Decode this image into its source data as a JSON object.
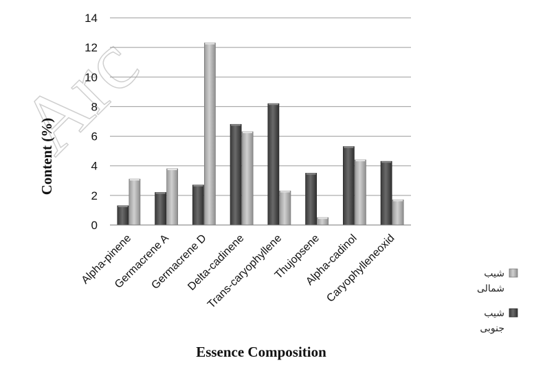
{
  "chart_data": {
    "type": "bar",
    "title": "",
    "xlabel": "Essence Composition",
    "ylabel": "Content (%)",
    "ylim": [
      0,
      14
    ],
    "yticks": [
      0,
      2,
      4,
      6,
      8,
      10,
      12,
      14
    ],
    "grid": true,
    "legend_position": "right",
    "watermark": "Arc",
    "categories": [
      "Alpha-pinene",
      "Germacrene A",
      "Germacrene D",
      "Delta-cadinene",
      "Trans-caryophyllene",
      "Thujopsene",
      "Alpha-cadinol",
      "Caryophylleneoxid"
    ],
    "series": [
      {
        "name": "شیب جنوبی",
        "color": "#505050",
        "values": [
          1.3,
          2.2,
          2.7,
          6.8,
          8.2,
          3.5,
          5.3,
          4.3
        ]
      },
      {
        "name": "شیب شمالی",
        "color": "#b4b4b4",
        "values": [
          3.1,
          3.8,
          12.3,
          6.3,
          2.3,
          0.5,
          4.4,
          1.7
        ]
      }
    ]
  }
}
